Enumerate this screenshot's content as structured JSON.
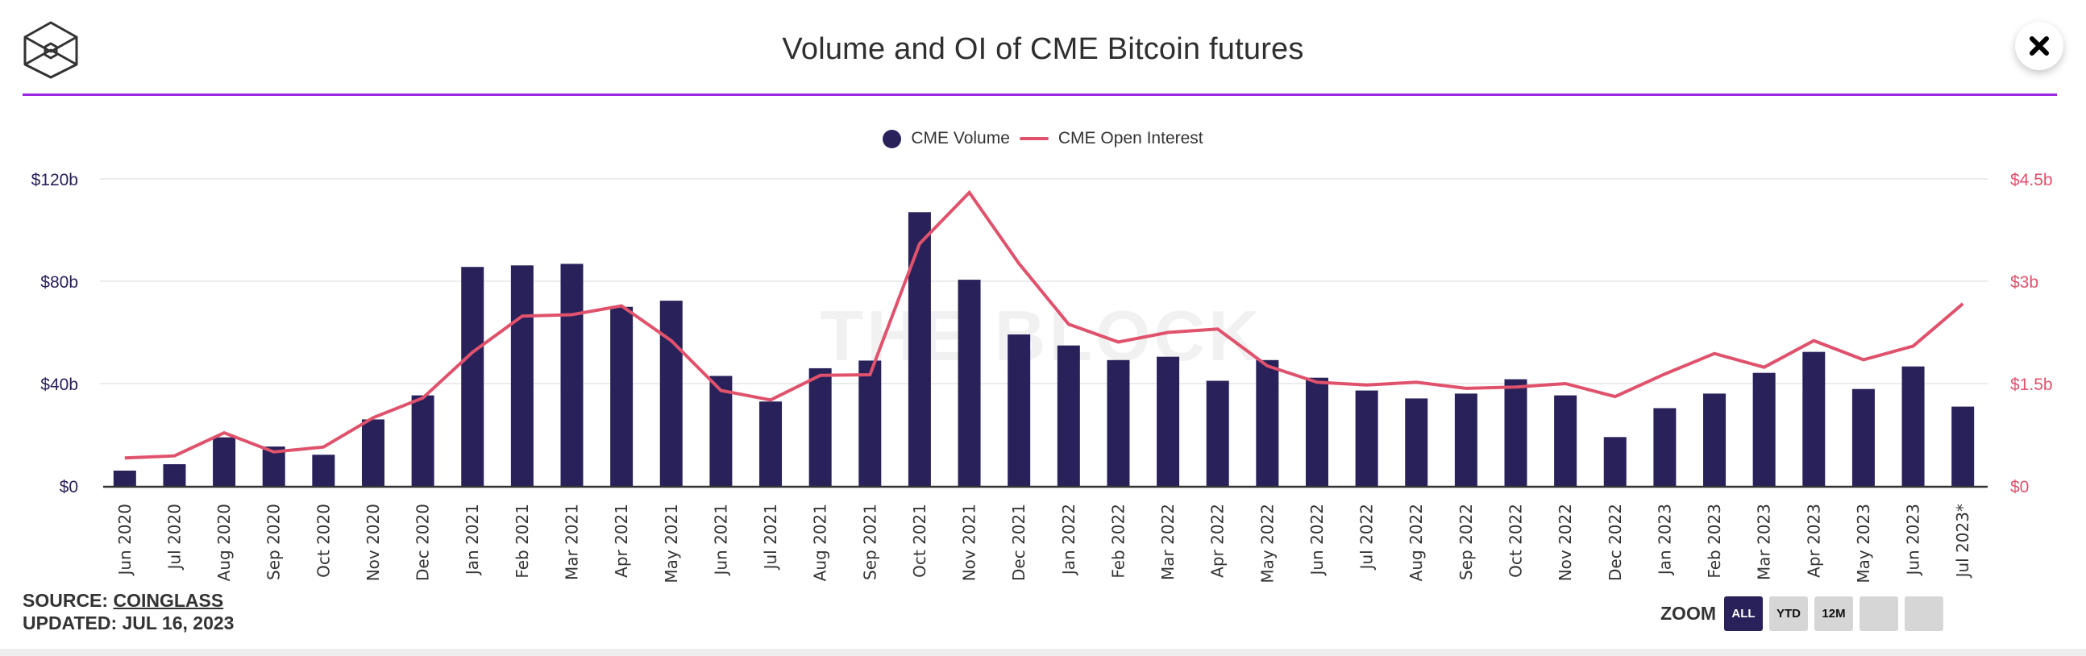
{
  "header": {
    "title": "Volume and OI of CME Bitcoin futures",
    "logo_icon": "the-block-cube-logo",
    "close_icon": "close-x-icon",
    "accent_color": "#9b27e0"
  },
  "legend": [
    {
      "label": "CME Volume",
      "shape": "circle",
      "color": "#28215a"
    },
    {
      "label": "CME Open Interest",
      "shape": "line",
      "color": "#e0526c"
    }
  ],
  "watermark": "THE BLOCK",
  "footer": {
    "source_prefix": "SOURCE: ",
    "source_link": "COINGLASS",
    "updated": "UPDATED: JUL 16, 2023"
  },
  "zoom": {
    "label": "ZOOM",
    "buttons": [
      {
        "label": "ALL",
        "active": true
      },
      {
        "label": "YTD",
        "active": false
      },
      {
        "label": "12M",
        "active": false
      },
      {
        "label": "",
        "active": false
      },
      {
        "label": "",
        "active": false
      }
    ]
  },
  "chart_data": {
    "type": "bar",
    "title": "Volume and OI of CME Bitcoin futures",
    "xlabel": "",
    "ylabel": "",
    "categories": [
      "Jun 2020",
      "Jul 2020",
      "Aug 2020",
      "Sep 2020",
      "Oct 2020",
      "Nov 2020",
      "Dec 2020",
      "Jan 2021",
      "Feb 2021",
      "Mar 2021",
      "Apr 2021",
      "May 2021",
      "Jun 2021",
      "Jul 2021",
      "Aug 2021",
      "Sep 2021",
      "Oct 2021",
      "Nov 2021",
      "Dec 2021",
      "Jan 2022",
      "Feb 2022",
      "Mar 2022",
      "Apr 2022",
      "May 2022",
      "Jun 2022",
      "Jul 2022",
      "Aug 2022",
      "Sep 2022",
      "Oct 2022",
      "Nov 2022",
      "Dec 2022",
      "Jan 2023",
      "Feb 2023",
      "Mar 2023",
      "Apr 2023",
      "May 2023",
      "Jun 2023",
      "Jul 2023*"
    ],
    "series": [
      {
        "name": "CME Volume",
        "type": "bar",
        "axis": "left",
        "color": "#28215a",
        "values": [
          6,
          8.5,
          19,
          15.4,
          12.2,
          26,
          35.4,
          85.6,
          86.2,
          86.8,
          70,
          72.4,
          43,
          33,
          46,
          49,
          107,
          80.6,
          59.2,
          54.9,
          49.2,
          50.5,
          41.1,
          49.2,
          42.3,
          37.3,
          34.2,
          36.1,
          41.7,
          35.4,
          19.1,
          30.4,
          36.1,
          44.2,
          52.4,
          37.9,
          46.7,
          31.0
        ]
      },
      {
        "name": "CME Open Interest",
        "type": "line",
        "axis": "right",
        "color": "#e0526c",
        "values": [
          0.41,
          0.44,
          0.78,
          0.5,
          0.57,
          1.0,
          1.29,
          1.96,
          2.49,
          2.51,
          2.64,
          2.13,
          1.4,
          1.26,
          1.62,
          1.63,
          3.55,
          4.3,
          3.26,
          2.37,
          2.11,
          2.25,
          2.3,
          1.76,
          1.52,
          1.48,
          1.52,
          1.43,
          1.45,
          1.5,
          1.31,
          1.64,
          1.94,
          1.74,
          2.13,
          1.85,
          2.05,
          2.67
        ]
      }
    ],
    "y_left": {
      "unit": "$b",
      "range": [
        0,
        120
      ],
      "ticks": [
        0,
        40,
        80,
        120
      ],
      "tick_labels": [
        "$0",
        "$40b",
        "$80b",
        "$120b"
      ],
      "color": "#28215a"
    },
    "y_right": {
      "unit": "$b",
      "range": [
        0,
        4.5
      ],
      "ticks": [
        0,
        1.5,
        3,
        4.5
      ],
      "tick_labels": [
        "$0",
        "$1.5b",
        "$3b",
        "$4.5b"
      ],
      "color": "#e0526c"
    },
    "grid": true,
    "legend_position": "top-center"
  }
}
